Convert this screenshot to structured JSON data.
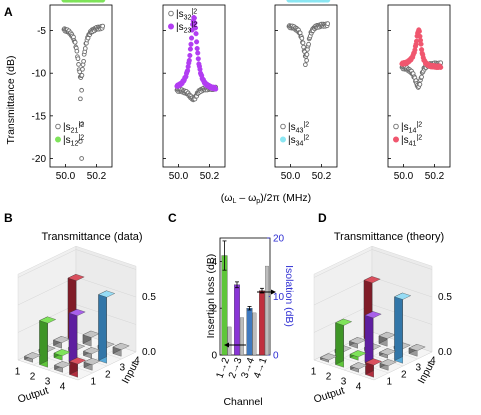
{
  "labels": {
    "A": "A",
    "B": "B",
    "C": "C",
    "D": "D"
  },
  "panel_a": {
    "ylabel": "Transmittance (dB)",
    "xlabel_parts": {
      "open": "(ω",
      "sub1": "L",
      "dash": " – ω",
      "sub2": "p",
      "close": ")/2π (MHz)"
    },
    "yticks": [
      "-5",
      "-10",
      "-15",
      "-20"
    ],
    "xticks": [
      "50.0",
      "50.2"
    ],
    "colors": {
      "gray": "#6d6d6d",
      "green": "#7ee35a",
      "purple": "#b23df2",
      "cyan": "#8be6f2",
      "pink": "#f0566e"
    },
    "legends": [
      {
        "a": "|s",
        "a_sub": "21",
        "a_sup": "|2",
        "b": "|s",
        "b_sub": "12",
        "b_sup": "|2"
      },
      {
        "a": "|s",
        "a_sub": "32",
        "a_sup": "|2",
        "b": "|s",
        "b_sub": "23",
        "b_sup": "|2"
      },
      {
        "a": "|s",
        "a_sub": "43",
        "a_sup": "|2",
        "b": "|s",
        "b_sub": "34",
        "b_sup": "|2"
      },
      {
        "a": "|s",
        "a_sub": "14",
        "a_sup": "|2",
        "b": "|s",
        "b_sub": "41",
        "b_sup": "|2"
      }
    ]
  },
  "panel_b": {
    "title": "Transmittance (data)"
  },
  "panel_d": {
    "title": "Transmittance (theory)"
  },
  "bar3d": {
    "zticks": [
      "0.0",
      "0.5"
    ],
    "output_ticks": [
      "1",
      "2",
      "3",
      "4"
    ],
    "input_ticks": [
      "1",
      "2",
      "3",
      "4"
    ],
    "output_label": "Output",
    "input_label": "Input"
  },
  "panel_c": {
    "left_label": "Insertion loss (dB)",
    "right_label": "Isolation (dB)",
    "xlabel": "Channel",
    "left_ticks": [
      "0",
      "2",
      "4"
    ],
    "right_ticks": [
      "0",
      "10",
      "20"
    ],
    "channels": [
      "1→2",
      "2→3",
      "3→4",
      "4→1"
    ]
  },
  "chart_data": [
    {
      "type": "scatter",
      "panel": "A1",
      "xlabel": "(ωL – ωp)/2π (MHz)",
      "ylabel": "Transmittance (dB)",
      "xlim": [
        49.9,
        50.3
      ],
      "ylim": [
        -21,
        -2
      ],
      "series": [
        {
          "name": "|s21|2",
          "color": "#6d6d6d",
          "shape": "dip",
          "baseline": -4.5,
          "center": 50.1,
          "depth": -10.5,
          "width": 0.025,
          "outliers": [
            -12,
            -13,
            -16,
            -18,
            -20
          ]
        },
        {
          "name": "|s12|2",
          "color": "#7ee35a",
          "shape": "flat",
          "level": -4.2
        }
      ]
    },
    {
      "type": "scatter",
      "panel": "A2",
      "xlim": [
        49.9,
        50.3
      ],
      "ylim": [
        -21,
        -2
      ],
      "series": [
        {
          "name": "|s32|2",
          "color": "#6d6d6d",
          "shape": "dip",
          "baseline": -11.8,
          "center": 50.1,
          "depth": -13,
          "width": 0.03,
          "outliers": []
        },
        {
          "name": "|s23|2",
          "color": "#b23df2",
          "shape": "peak",
          "baseline": -12,
          "center": 50.1,
          "peak": -3.5,
          "width": 0.025
        }
      ]
    },
    {
      "type": "scatter",
      "panel": "A3",
      "xlim": [
        49.9,
        50.3
      ],
      "ylim": [
        -21,
        -2
      ],
      "series": [
        {
          "name": "|s43|2",
          "color": "#6d6d6d",
          "shape": "dip",
          "baseline": -4.3,
          "center": 50.1,
          "depth": -8,
          "width": 0.022,
          "outliers": [
            -8.5,
            -9
          ]
        },
        {
          "name": "|s34|2",
          "color": "#8be6f2",
          "shape": "flat",
          "level": -3.8
        }
      ]
    },
    {
      "type": "scatter",
      "panel": "A4",
      "xlim": [
        49.9,
        50.3
      ],
      "ylim": [
        -21,
        -2
      ],
      "series": [
        {
          "name": "|s14|2",
          "color": "#6d6d6d",
          "shape": "dip",
          "baseline": -9,
          "center": 50.1,
          "depth": -11.5,
          "width": 0.025,
          "outliers": []
        },
        {
          "name": "|s41|2",
          "color": "#f0566e",
          "shape": "peak",
          "baseline": -9.2,
          "center": 50.1,
          "peak": -5,
          "width": 0.02
        }
      ]
    },
    {
      "type": "bar",
      "panel": "B",
      "title": "Transmittance (data)",
      "xlabel": "Output",
      "ylabel": "Input",
      "zlim": [
        0,
        0.8
      ],
      "matrix": [
        [
          0.03,
          0.4,
          0.04,
          0.12
        ],
        [
          0.03,
          0.04,
          0.45,
          0.05
        ],
        [
          0.05,
          0.03,
          0.04,
          0.6
        ],
        [
          0.55,
          0.08,
          0.03,
          0.06
        ]
      ]
    },
    {
      "type": "bar",
      "panel": "D",
      "title": "Transmittance (theory)",
      "xlabel": "Output",
      "ylabel": "Input",
      "zlim": [
        0,
        0.8
      ],
      "matrix": [
        [
          0.02,
          0.38,
          0.03,
          0.11
        ],
        [
          0.03,
          0.03,
          0.43,
          0.04
        ],
        [
          0.04,
          0.03,
          0.03,
          0.58
        ],
        [
          0.53,
          0.07,
          0.02,
          0.05
        ]
      ]
    },
    {
      "type": "bar",
      "panel": "C",
      "xlabel": "Channel",
      "categories": [
        "1→2",
        "2→3",
        "3→4",
        "4→1"
      ],
      "series": [
        {
          "name": "Insertion loss (dB)",
          "axis": "left",
          "values": [
            1.2,
            1.6,
            1.8,
            3.8
          ],
          "colors": [
            "#bdbdbd",
            "#bdbdbd",
            "#bdbdbd",
            "#bdbdbd"
          ]
        },
        {
          "name": "Isolation (dB)",
          "axis": "right",
          "values": [
            17,
            12,
            8,
            11
          ],
          "errors": [
            2.5,
            0.5,
            0.3,
            0.4
          ],
          "colors": [
            "#5fc63a",
            "#8a36d6",
            "#3f79bf",
            "#c0303e"
          ]
        }
      ],
      "ylim_left": [
        0,
        5
      ],
      "ylim_right": [
        0,
        20
      ]
    }
  ]
}
